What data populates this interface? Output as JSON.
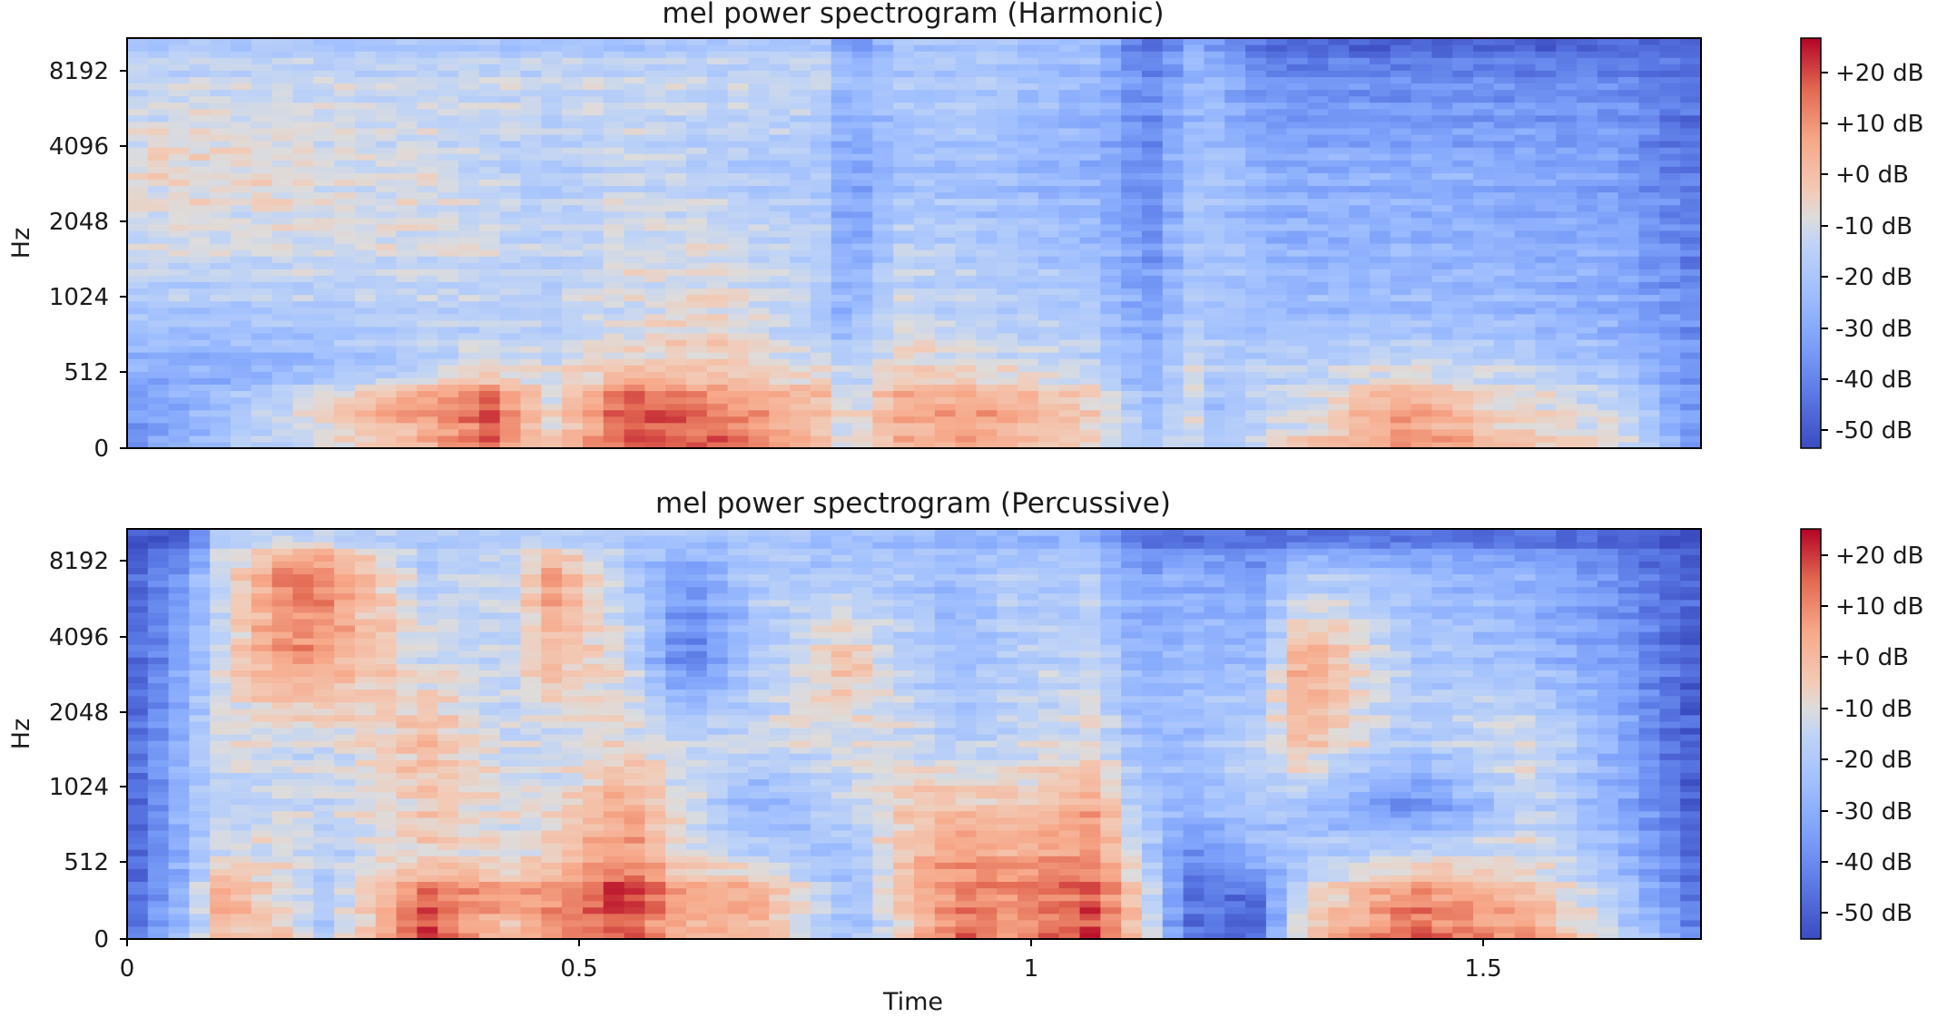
{
  "figure": {
    "panels": [
      {
        "title": "mel power spectrogram (Harmonic)",
        "ylabel": "Hz",
        "yticks": [
          "0",
          "512",
          "1024",
          "2048",
          "4096",
          "8192"
        ],
        "colorbar_ticks": [
          "+20 dB",
          "+10 dB",
          "+0 dB",
          "-10 dB",
          "-20 dB",
          "-30 dB",
          "-40 dB",
          "-50 dB"
        ]
      },
      {
        "title": "mel power spectrogram (Percussive)",
        "ylabel": "Hz",
        "yticks": [
          "0",
          "512",
          "1024",
          "2048",
          "4096",
          "8192"
        ],
        "xlabel": "Time",
        "xticks": [
          "0",
          "0.5",
          "1",
          "1.5"
        ],
        "colorbar_ticks": [
          "+20 dB",
          "+10 dB",
          "+0 dB",
          "-10 dB",
          "-20 dB",
          "-30 dB",
          "-40 dB",
          "-50 dB"
        ]
      }
    ]
  },
  "chart_data": [
    {
      "type": "heatmap",
      "title": "mel power spectrogram (Harmonic)",
      "xlabel": "",
      "ylabel": "Hz",
      "x_unit": "s",
      "xlim": [
        0,
        1.74
      ],
      "y_scale": "mel",
      "yticks": [
        0,
        512,
        1024,
        2048,
        4096,
        8192
      ],
      "colorbar": {
        "label": "",
        "range_db": [
          -55,
          25
        ],
        "ticks_db": [
          20,
          10,
          0,
          -10,
          -20,
          -30,
          -40,
          -50
        ],
        "colormap": "coolwarm"
      },
      "time_s": [
        0.0,
        0.07,
        0.13,
        0.3,
        0.4,
        0.47,
        0.55,
        0.65,
        0.77,
        0.8,
        0.85,
        0.95,
        1.07,
        1.13,
        1.18,
        1.2,
        1.27,
        1.35,
        1.42,
        1.5,
        1.65,
        1.73
      ],
      "freq_hz": [
        0,
        256,
        512,
        1024,
        2048,
        4096,
        8192,
        11025
      ],
      "db": [
        [
          -38,
          -38,
          -30,
          -22,
          -12,
          -8,
          -15,
          -20
        ],
        [
          -30,
          -30,
          -30,
          -22,
          -12,
          -8,
          -14,
          -21
        ],
        [
          -20,
          -20,
          -30,
          -22,
          -12,
          -8,
          -14,
          -22
        ],
        [
          -5,
          5,
          -20,
          -18,
          -12,
          -11,
          -14,
          -22
        ],
        [
          12,
          18,
          -10,
          -18,
          -12,
          -15,
          -14,
          -22
        ],
        [
          -5,
          -10,
          -12,
          -18,
          -17,
          -19,
          -14,
          -22
        ],
        [
          15,
          20,
          -5,
          -12,
          -11,
          -14,
          -14,
          -22
        ],
        [
          15,
          10,
          -5,
          -7,
          -12,
          -19,
          -14,
          -22
        ],
        [
          -5,
          0,
          -10,
          -20,
          -17,
          -22,
          -14,
          -22
        ],
        [
          -15,
          -15,
          -20,
          -30,
          -35,
          -35,
          -30,
          -40
        ],
        [
          0,
          5,
          -5,
          -12,
          -17,
          -24,
          -20,
          -22
        ],
        [
          5,
          5,
          -10,
          -18,
          -20,
          -24,
          -20,
          -22
        ],
        [
          -10,
          -5,
          -15,
          -20,
          -25,
          -30,
          -28,
          -22
        ],
        [
          -20,
          -25,
          -30,
          -35,
          -38,
          -40,
          -40,
          -50
        ],
        [
          -12,
          -12,
          -12,
          -20,
          -22,
          -24,
          -28,
          -30
        ],
        [
          -20,
          -25,
          -18,
          -22,
          -22,
          -24,
          -28,
          -35
        ],
        [
          -10,
          -15,
          -18,
          -25,
          -28,
          -30,
          -40,
          -50
        ],
        [
          0,
          -5,
          -15,
          -25,
          -28,
          -30,
          -40,
          -50
        ],
        [
          10,
          5,
          -12,
          -25,
          -28,
          -30,
          -40,
          -50
        ],
        [
          0,
          -5,
          -15,
          -25,
          -28,
          -30,
          -40,
          -50
        ],
        [
          -10,
          -15,
          -22,
          -30,
          -32,
          -35,
          -40,
          -50
        ],
        [
          -35,
          -35,
          -38,
          -40,
          -42,
          -45,
          -45,
          -50
        ]
      ]
    },
    {
      "type": "heatmap",
      "title": "mel power spectrogram (Percussive)",
      "xlabel": "Time",
      "ylabel": "Hz",
      "x_unit": "s",
      "xlim": [
        0,
        1.74
      ],
      "xticks": [
        0,
        0.5,
        1,
        1.5
      ],
      "y_scale": "mel",
      "yticks": [
        0,
        512,
        1024,
        2048,
        4096,
        8192
      ],
      "colorbar": {
        "label": "",
        "range_db": [
          -55,
          25
        ],
        "ticks_db": [
          20,
          10,
          0,
          -10,
          -20,
          -30,
          -40,
          -50
        ],
        "colormap": "coolwarm"
      },
      "time_s": [
        0.0,
        0.07,
        0.1,
        0.18,
        0.22,
        0.33,
        0.42,
        0.47,
        0.55,
        0.62,
        0.7,
        0.8,
        0.85,
        0.92,
        0.97,
        1.07,
        1.12,
        1.17,
        1.25,
        1.3,
        1.42,
        1.55,
        1.65,
        1.73
      ],
      "freq_hz": [
        0,
        256,
        512,
        1024,
        2048,
        4096,
        8192,
        11025
      ],
      "db": [
        [
          -45,
          -50,
          -50,
          -50,
          -50,
          -50,
          -50,
          -55
        ],
        [
          -20,
          -25,
          -25,
          -25,
          -25,
          -30,
          -35,
          -55
        ],
        [
          -5,
          5,
          -10,
          -18,
          -10,
          -14,
          -14,
          -20
        ],
        [
          -5,
          -10,
          -10,
          -12,
          -14,
          10,
          15,
          -20
        ],
        [
          -20,
          -20,
          -18,
          -15,
          -14,
          5,
          10,
          -20
        ],
        [
          20,
          15,
          -5,
          -5,
          0,
          -12,
          -18,
          -20
        ],
        [
          -5,
          5,
          -10,
          -10,
          -14,
          -15,
          -15,
          -20
        ],
        [
          5,
          10,
          -5,
          -10,
          -14,
          0,
          5,
          -20
        ],
        [
          15,
          22,
          10,
          5,
          -8,
          -12,
          -18,
          -20
        ],
        [
          0,
          5,
          -10,
          -12,
          -15,
          -45,
          -35,
          -20
        ],
        [
          0,
          5,
          -15,
          -30,
          -12,
          -20,
          -20,
          -22
        ],
        [
          -25,
          -25,
          -25,
          -15,
          -12,
          0,
          -22,
          -25
        ],
        [
          -10,
          -5,
          -5,
          -5,
          -10,
          -15,
          -20,
          -25
        ],
        [
          15,
          12,
          8,
          0,
          -20,
          -25,
          -25,
          -30
        ],
        [
          5,
          10,
          5,
          -5,
          -15,
          -20,
          -20,
          -30
        ],
        [
          20,
          15,
          10,
          5,
          -10,
          -15,
          -20,
          -30
        ],
        [
          -5,
          -5,
          -15,
          -20,
          -25,
          -30,
          -35,
          -50
        ],
        [
          -45,
          -45,
          -40,
          -30,
          -25,
          -25,
          -30,
          -50
        ],
        [
          -50,
          -45,
          -30,
          -20,
          -15,
          -25,
          -35,
          -50
        ],
        [
          -5,
          -10,
          -20,
          -25,
          0,
          5,
          -20,
          -50
        ],
        [
          15,
          10,
          -10,
          -40,
          -20,
          -20,
          -25,
          -50
        ],
        [
          5,
          0,
          -10,
          -15,
          -10,
          -25,
          -30,
          -50
        ],
        [
          -15,
          -20,
          -25,
          -30,
          -30,
          -35,
          -40,
          -50
        ],
        [
          -40,
          -45,
          -48,
          -50,
          -50,
          -50,
          -50,
          -55
        ]
      ]
    }
  ]
}
